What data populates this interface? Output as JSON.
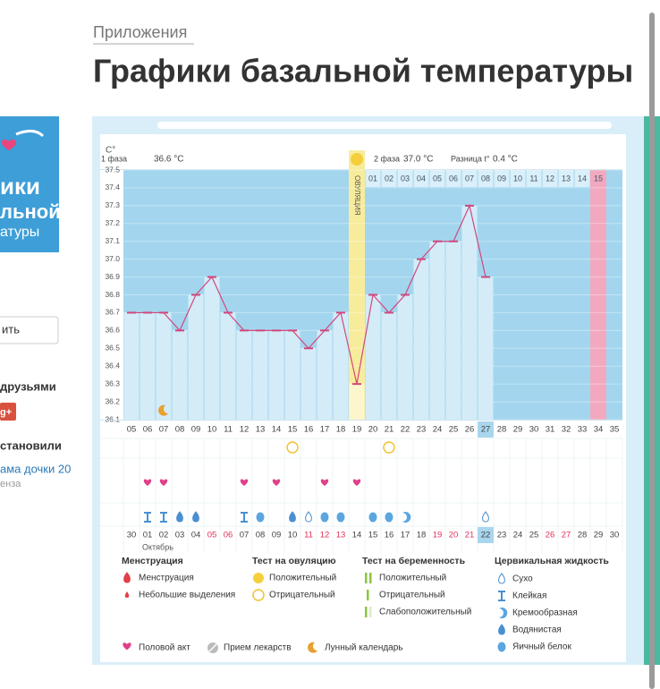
{
  "header": {
    "section": "Приложения",
    "title": "Графики базальной температуры"
  },
  "sidebar": {
    "banner_lines": [
      "ики",
      "льной",
      "атуры"
    ],
    "button": "ить",
    "share_title": "друзьями",
    "installed_title": "становили",
    "link": "ама дочки 20",
    "link_sub": "енза"
  },
  "chart_data": {
    "type": "line",
    "y_unit": "C°",
    "phase1_label": "1 фаза",
    "phase1_value": "36.6 °C",
    "phase2_label": "2 фаза",
    "phase2_value": "37.0 °C",
    "diff_label": "Разница t°",
    "diff_value": "0.4 °C",
    "ovulation_label": "ОВУЛЯЦИЯ",
    "phase2_days": [
      "01",
      "02",
      "03",
      "04",
      "05",
      "06",
      "07",
      "08",
      "09",
      "10",
      "11",
      "12",
      "13",
      "14",
      "15"
    ],
    "categories": [
      "05",
      "06",
      "07",
      "08",
      "09",
      "10",
      "11",
      "12",
      "13",
      "14",
      "15",
      "16",
      "17",
      "18",
      "19",
      "20",
      "21",
      "22",
      "23",
      "24",
      "25",
      "26",
      "27",
      "28",
      "29",
      "30",
      "31",
      "32",
      "33",
      "34",
      "35"
    ],
    "dates": [
      "30",
      "01",
      "02",
      "03",
      "04",
      "05",
      "06",
      "07",
      "08",
      "09",
      "10",
      "11",
      "12",
      "13",
      "14",
      "15",
      "16",
      "17",
      "18",
      "19",
      "20",
      "21",
      "22",
      "23",
      "24",
      "25",
      "26",
      "27",
      "28",
      "29",
      "30"
    ],
    "month_label": "Октябрь",
    "values": [
      36.7,
      36.7,
      36.7,
      36.6,
      36.8,
      36.9,
      36.7,
      36.6,
      36.6,
      36.6,
      36.6,
      36.5,
      36.6,
      36.7,
      36.3,
      36.8,
      36.7,
      36.8,
      37.0,
      37.1,
      37.1,
      37.3,
      36.9,
      null,
      null,
      null,
      null,
      null,
      null,
      null,
      null
    ],
    "color": "#d2477d",
    "ylim": [
      36.1,
      37.5
    ],
    "yticks": [
      36.1,
      36.2,
      36.3,
      36.4,
      36.5,
      36.6,
      36.7,
      36.8,
      36.9,
      {
        "value": 37,
        "label": "37.0"
      },
      37.1,
      37.2,
      37.3,
      37.4,
      37.5
    ],
    "grid": true
  },
  "legend": {
    "menstruation": {
      "title": "Менструация",
      "items": [
        "Менструация",
        "Небольшие выделения"
      ]
    },
    "ovulation_test": {
      "title": "Тест на овуляцию",
      "items": [
        "Положительный",
        "Отрицательный"
      ]
    },
    "pregnancy_test": {
      "title": "Тест на беременность",
      "items": [
        "Положительный",
        "Отрицательный",
        "Слабоположительный"
      ]
    },
    "cervical_fluid": {
      "title": "Цервикальная жидкость",
      "items": [
        "Сухо",
        "Клейкая",
        "Кремообразная",
        "Водянистая",
        "Яичный белок"
      ]
    },
    "other": [
      "Половой акт",
      "Прием лекарств",
      "Лунный календарь"
    ]
  }
}
